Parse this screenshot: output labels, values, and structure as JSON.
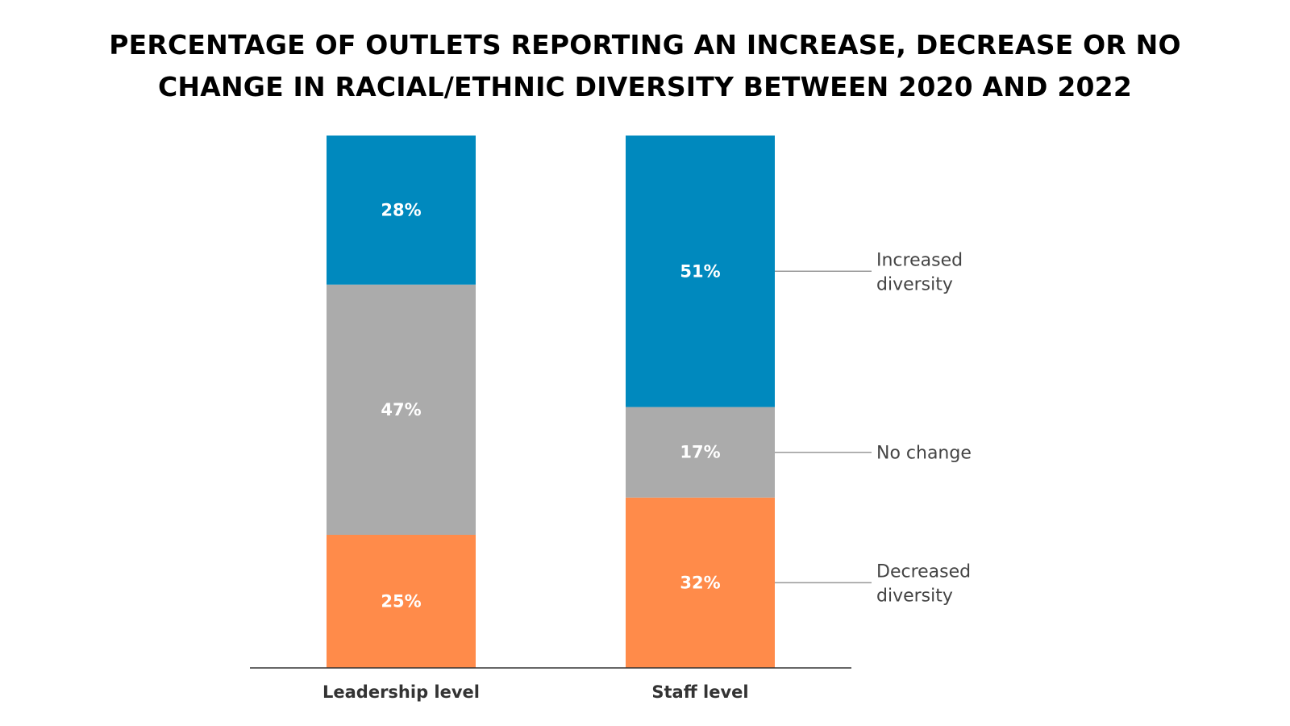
{
  "chart_data": {
    "type": "bar",
    "stacked": true,
    "title_lines": [
      "PERCENTAGE OF OUTLETS REPORTING AN INCREASE, DECREASE OR NO",
      "CHANGE IN RACIAL/ETHNIC DIVERSITY BETWEEN 2020 AND 2022"
    ],
    "categories": [
      "Leadership level",
      "Staff level"
    ],
    "series": [
      {
        "key": "decreased",
        "legend_lines": [
          "Decreased",
          "diversity"
        ],
        "color": "#FF8B4A",
        "values": [
          25,
          32
        ],
        "labels": [
          "25%",
          "32%"
        ]
      },
      {
        "key": "nochange",
        "legend_lines": [
          "No change"
        ],
        "color": "#ABABAB",
        "values": [
          47,
          17
        ],
        "labels": [
          "47%",
          "17%"
        ]
      },
      {
        "key": "increased",
        "legend_lines": [
          "Increased",
          "diversity"
        ],
        "color": "#0089BE",
        "values": [
          28,
          51
        ],
        "labels": [
          "28%",
          "51%"
        ]
      }
    ],
    "ylim": [
      0,
      100
    ],
    "xlabel": "",
    "ylabel": "",
    "grid": false,
    "legend_position": "right (direct labels on last bar)"
  }
}
